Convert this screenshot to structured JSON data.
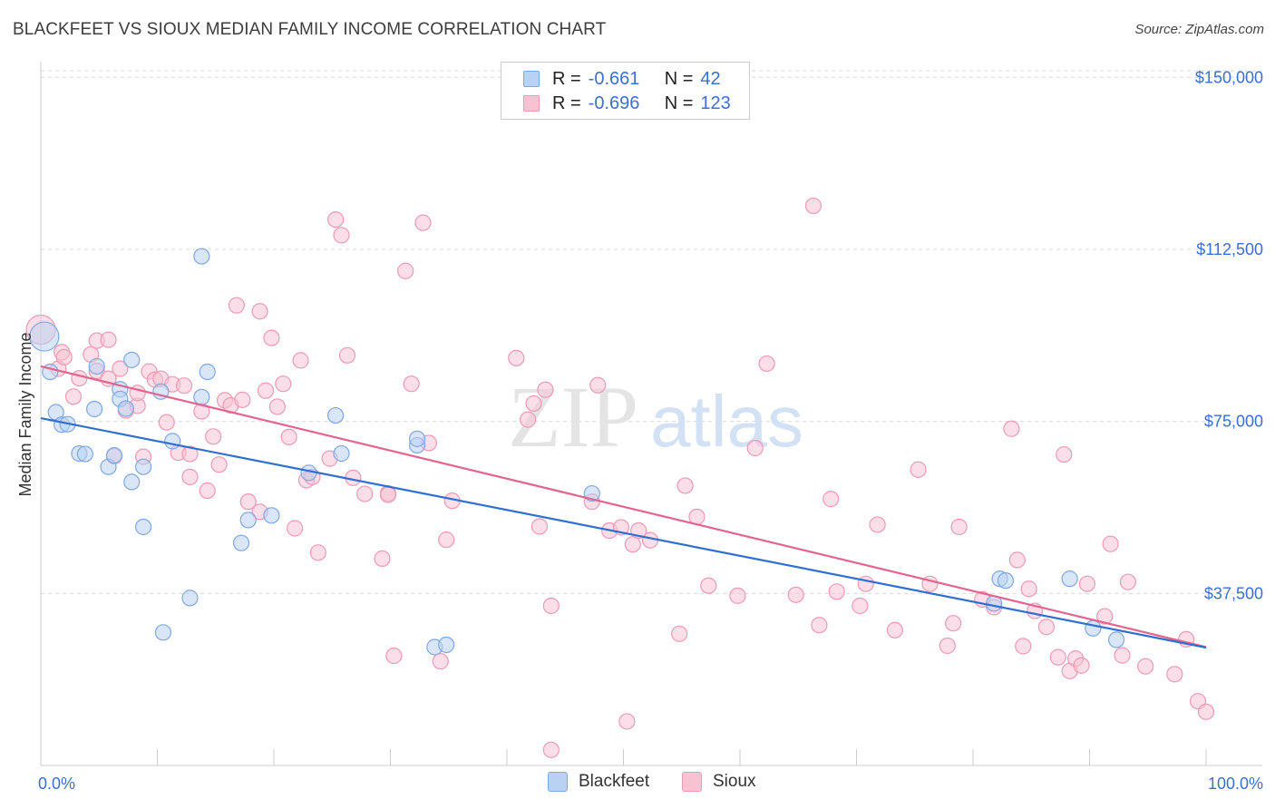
{
  "title": "BLACKFEET VS SIOUX MEDIAN FAMILY INCOME CORRELATION CHART",
  "source": "Source: ZipAtlas.com",
  "watermark": {
    "zip": "ZIP",
    "atlas": "atlas"
  },
  "legend": {
    "rows": [
      {
        "r_label": "R =",
        "r_value": "-0.661",
        "n_label": "N =",
        "n_value": "42"
      },
      {
        "r_label": "R =",
        "r_value": "-0.696",
        "n_label": "N =",
        "n_value": "123"
      }
    ]
  },
  "bottom_legend": {
    "blackfeet": "Blackfeet",
    "sioux": "Sioux"
  },
  "colors": {
    "blackfeet_fill": "#b9d2f3",
    "blackfeet_stroke": "#7ea8e4",
    "blackfeet_line": "#2f6fd0",
    "sioux_fill": "#f7c3d3",
    "sioux_stroke": "#ee9ab5",
    "sioux_line": "#e3648f",
    "tick_text": "#3b6fd1",
    "grid": "#d9d9d9"
  },
  "chart_data": {
    "type": "scatter",
    "title": "BLACKFEET VS SIOUX MEDIAN FAMILY INCOME CORRELATION CHART",
    "xlabel": "",
    "ylabel": "Median Family Income",
    "xlim": [
      0,
      100
    ],
    "ylim": [
      0,
      155000
    ],
    "x_tick_labels": [
      "0.0%",
      "100.0%"
    ],
    "y_ticks": [
      37500,
      75000,
      112500,
      150000
    ],
    "y_tick_labels": [
      "$37,500",
      "$75,000",
      "$112,500",
      "$150,000"
    ],
    "grid": true,
    "series": [
      {
        "name": "Blackfeet",
        "r": -0.661,
        "n": 42,
        "trend": {
          "x": [
            0,
            100
          ],
          "y": [
            75700,
            25700
          ]
        },
        "points": [
          [
            0.3,
            93500
          ],
          [
            0.8,
            85800
          ],
          [
            1.3,
            77000
          ],
          [
            1.8,
            74300
          ],
          [
            2.3,
            74400
          ],
          [
            3.3,
            68000
          ],
          [
            3.8,
            67900
          ],
          [
            4.8,
            87000
          ],
          [
            4.6,
            77700
          ],
          [
            5.8,
            65100
          ],
          [
            6.3,
            67600
          ],
          [
            6.8,
            82000
          ],
          [
            6.8,
            79900
          ],
          [
            7.3,
            77800
          ],
          [
            7.8,
            61800
          ],
          [
            7.8,
            88400
          ],
          [
            8.8,
            52000
          ],
          [
            8.8,
            65100
          ],
          [
            10.3,
            81500
          ],
          [
            10.5,
            29000
          ],
          [
            11.3,
            70700
          ],
          [
            12.8,
            36500
          ],
          [
            13.8,
            80300
          ],
          [
            13.8,
            111000
          ],
          [
            14.3,
            85800
          ],
          [
            17.8,
            53500
          ],
          [
            17.2,
            48500
          ],
          [
            19.8,
            54500
          ],
          [
            23.0,
            63800
          ],
          [
            25.3,
            76300
          ],
          [
            25.8,
            68000
          ],
          [
            32.3,
            69800
          ],
          [
            32.3,
            71200
          ],
          [
            33.8,
            25800
          ],
          [
            34.8,
            26300
          ],
          [
            47.3,
            59300
          ],
          [
            82.3,
            40700
          ],
          [
            81.8,
            35300
          ],
          [
            88.3,
            40700
          ],
          [
            90.3,
            29900
          ],
          [
            92.3,
            27400
          ],
          [
            82.8,
            40300
          ]
        ]
      },
      {
        "name": "Sioux",
        "r": -0.696,
        "n": 123,
        "trend": {
          "x": [
            0,
            100
          ],
          "y": [
            87000,
            25800
          ]
        },
        "points": [
          [
            0.0,
            95000
          ],
          [
            1.5,
            86500
          ],
          [
            1.8,
            90100
          ],
          [
            2.0,
            89000
          ],
          [
            2.8,
            80400
          ],
          [
            3.3,
            84400
          ],
          [
            4.3,
            89600
          ],
          [
            4.8,
            92600
          ],
          [
            4.8,
            86000
          ],
          [
            5.8,
            84300
          ],
          [
            5.8,
            92800
          ],
          [
            6.3,
            67400
          ],
          [
            6.8,
            86500
          ],
          [
            7.3,
            77400
          ],
          [
            8.3,
            78400
          ],
          [
            8.3,
            81200
          ],
          [
            8.8,
            67300
          ],
          [
            9.3,
            85900
          ],
          [
            9.8,
            84100
          ],
          [
            10.3,
            84300
          ],
          [
            10.8,
            74800
          ],
          [
            11.3,
            83100
          ],
          [
            11.8,
            68200
          ],
          [
            12.3,
            82800
          ],
          [
            12.8,
            62900
          ],
          [
            12.8,
            67900
          ],
          [
            13.8,
            77200
          ],
          [
            14.3,
            59900
          ],
          [
            14.8,
            71700
          ],
          [
            15.3,
            65600
          ],
          [
            15.8,
            79600
          ],
          [
            16.3,
            78500
          ],
          [
            16.8,
            100300
          ],
          [
            17.3,
            79700
          ],
          [
            17.8,
            57500
          ],
          [
            18.8,
            99000
          ],
          [
            18.8,
            55300
          ],
          [
            19.3,
            81700
          ],
          [
            19.8,
            93200
          ],
          [
            20.3,
            78200
          ],
          [
            20.8,
            83200
          ],
          [
            21.3,
            71600
          ],
          [
            21.8,
            51700
          ],
          [
            22.3,
            88300
          ],
          [
            22.8,
            62200
          ],
          [
            23.3,
            62900
          ],
          [
            23.8,
            46400
          ],
          [
            24.8,
            66900
          ],
          [
            25.3,
            119000
          ],
          [
            25.8,
            115600
          ],
          [
            26.3,
            89400
          ],
          [
            26.8,
            62700
          ],
          [
            27.8,
            59200
          ],
          [
            29.3,
            45100
          ],
          [
            29.8,
            59300
          ],
          [
            29.8,
            59000
          ],
          [
            30.3,
            23900
          ],
          [
            31.3,
            107800
          ],
          [
            31.8,
            83200
          ],
          [
            32.8,
            118300
          ],
          [
            33.3,
            70300
          ],
          [
            34.3,
            22700
          ],
          [
            34.8,
            49200
          ],
          [
            35.3,
            57700
          ],
          [
            40.8,
            88800
          ],
          [
            41.8,
            75400
          ],
          [
            42.3,
            78900
          ],
          [
            43.3,
            81900
          ],
          [
            42.8,
            52100
          ],
          [
            43.8,
            34800
          ],
          [
            43.8,
            3400
          ],
          [
            47.3,
            57500
          ],
          [
            47.8,
            82900
          ],
          [
            48.8,
            51200
          ],
          [
            49.8,
            51900
          ],
          [
            50.3,
            9600
          ],
          [
            50.8,
            48200
          ],
          [
            51.3,
            51200
          ],
          [
            52.3,
            49100
          ],
          [
            54.8,
            28700
          ],
          [
            55.3,
            61000
          ],
          [
            56.3,
            54200
          ],
          [
            57.3,
            39200
          ],
          [
            59.8,
            37000
          ],
          [
            61.3,
            69200
          ],
          [
            62.3,
            87600
          ],
          [
            64.8,
            37200
          ],
          [
            66.3,
            122000
          ],
          [
            66.8,
            30600
          ],
          [
            67.8,
            58100
          ],
          [
            68.3,
            37900
          ],
          [
            70.3,
            34800
          ],
          [
            70.8,
            39600
          ],
          [
            71.8,
            52500
          ],
          [
            73.3,
            29500
          ],
          [
            75.3,
            64500
          ],
          [
            76.3,
            39600
          ],
          [
            77.8,
            26100
          ],
          [
            78.3,
            31000
          ],
          [
            78.8,
            52000
          ],
          [
            80.8,
            36200
          ],
          [
            81.8,
            34500
          ],
          [
            83.3,
            73400
          ],
          [
            83.8,
            44800
          ],
          [
            84.3,
            26000
          ],
          [
            84.8,
            38500
          ],
          [
            85.3,
            33700
          ],
          [
            86.3,
            30200
          ],
          [
            87.3,
            23600
          ],
          [
            87.8,
            67800
          ],
          [
            88.3,
            20600
          ],
          [
            88.8,
            23300
          ],
          [
            89.3,
            21800
          ],
          [
            89.8,
            39600
          ],
          [
            91.3,
            32500
          ],
          [
            91.8,
            48300
          ],
          [
            92.8,
            24000
          ],
          [
            93.3,
            40000
          ],
          [
            94.8,
            21600
          ],
          [
            97.3,
            19900
          ],
          [
            98.3,
            27500
          ],
          [
            99.3,
            14000
          ],
          [
            100.0,
            11700
          ]
        ]
      }
    ]
  }
}
